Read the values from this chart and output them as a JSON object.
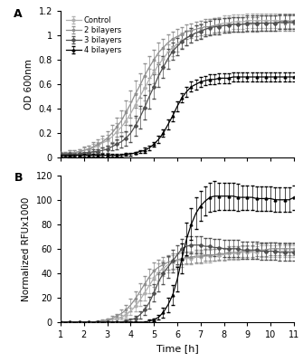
{
  "time": [
    1.0,
    1.2,
    1.4,
    1.6,
    1.8,
    2.0,
    2.2,
    2.4,
    2.6,
    2.8,
    3.0,
    3.2,
    3.4,
    3.6,
    3.8,
    4.0,
    4.2,
    4.4,
    4.6,
    4.8,
    5.0,
    5.2,
    5.4,
    5.6,
    5.8,
    6.0,
    6.2,
    6.4,
    6.6,
    6.8,
    7.0,
    7.2,
    7.4,
    7.6,
    7.8,
    8.0,
    8.2,
    8.4,
    8.6,
    8.8,
    9.0,
    9.2,
    9.4,
    9.6,
    9.8,
    10.0,
    10.2,
    10.4,
    10.6,
    10.8,
    11.0
  ],
  "od_control": [
    0.03,
    0.03,
    0.04,
    0.04,
    0.05,
    0.06,
    0.07,
    0.08,
    0.1,
    0.12,
    0.14,
    0.17,
    0.21,
    0.25,
    0.3,
    0.36,
    0.43,
    0.5,
    0.57,
    0.64,
    0.7,
    0.76,
    0.81,
    0.86,
    0.9,
    0.93,
    0.96,
    0.98,
    1.0,
    1.02,
    1.04,
    1.05,
    1.07,
    1.08,
    1.09,
    1.1,
    1.1,
    1.11,
    1.11,
    1.11,
    1.12,
    1.12,
    1.12,
    1.12,
    1.12,
    1.12,
    1.12,
    1.12,
    1.12,
    1.12,
    1.12
  ],
  "od_control_err": [
    0.02,
    0.02,
    0.02,
    0.02,
    0.02,
    0.02,
    0.03,
    0.03,
    0.03,
    0.04,
    0.05,
    0.06,
    0.07,
    0.08,
    0.09,
    0.1,
    0.1,
    0.1,
    0.1,
    0.09,
    0.09,
    0.08,
    0.08,
    0.07,
    0.07,
    0.06,
    0.06,
    0.06,
    0.06,
    0.06,
    0.06,
    0.06,
    0.06,
    0.06,
    0.06,
    0.06,
    0.06,
    0.06,
    0.06,
    0.06,
    0.06,
    0.06,
    0.06,
    0.06,
    0.06,
    0.06,
    0.06,
    0.06,
    0.06,
    0.06,
    0.06
  ],
  "od_2bil": [
    0.03,
    0.03,
    0.04,
    0.04,
    0.05,
    0.06,
    0.07,
    0.09,
    0.11,
    0.13,
    0.16,
    0.2,
    0.25,
    0.3,
    0.37,
    0.44,
    0.52,
    0.59,
    0.67,
    0.74,
    0.8,
    0.86,
    0.9,
    0.94,
    0.97,
    0.99,
    1.01,
    1.03,
    1.04,
    1.05,
    1.06,
    1.07,
    1.07,
    1.08,
    1.08,
    1.08,
    1.09,
    1.09,
    1.09,
    1.09,
    1.09,
    1.09,
    1.09,
    1.1,
    1.1,
    1.1,
    1.1,
    1.1,
    1.1,
    1.1,
    1.1
  ],
  "od_2bil_err": [
    0.02,
    0.02,
    0.02,
    0.02,
    0.02,
    0.03,
    0.03,
    0.04,
    0.04,
    0.05,
    0.06,
    0.07,
    0.08,
    0.09,
    0.1,
    0.11,
    0.11,
    0.1,
    0.1,
    0.09,
    0.08,
    0.08,
    0.07,
    0.07,
    0.06,
    0.06,
    0.06,
    0.06,
    0.06,
    0.06,
    0.06,
    0.06,
    0.06,
    0.06,
    0.06,
    0.06,
    0.06,
    0.06,
    0.06,
    0.06,
    0.06,
    0.06,
    0.06,
    0.06,
    0.06,
    0.06,
    0.06,
    0.06,
    0.06,
    0.06,
    0.06
  ],
  "od_3bil": [
    0.03,
    0.03,
    0.03,
    0.03,
    0.03,
    0.04,
    0.04,
    0.05,
    0.05,
    0.06,
    0.07,
    0.09,
    0.11,
    0.13,
    0.16,
    0.2,
    0.26,
    0.33,
    0.41,
    0.5,
    0.58,
    0.67,
    0.74,
    0.81,
    0.87,
    0.91,
    0.95,
    0.98,
    1.0,
    1.02,
    1.03,
    1.05,
    1.06,
    1.07,
    1.07,
    1.08,
    1.08,
    1.09,
    1.09,
    1.09,
    1.1,
    1.1,
    1.1,
    1.1,
    1.1,
    1.1,
    1.1,
    1.11,
    1.11,
    1.11,
    1.11
  ],
  "od_3bil_err": [
    0.01,
    0.01,
    0.01,
    0.01,
    0.01,
    0.01,
    0.01,
    0.02,
    0.02,
    0.02,
    0.03,
    0.03,
    0.04,
    0.05,
    0.06,
    0.07,
    0.08,
    0.09,
    0.1,
    0.1,
    0.1,
    0.09,
    0.09,
    0.08,
    0.07,
    0.07,
    0.06,
    0.06,
    0.06,
    0.06,
    0.06,
    0.06,
    0.06,
    0.06,
    0.06,
    0.06,
    0.06,
    0.06,
    0.06,
    0.06,
    0.06,
    0.06,
    0.06,
    0.06,
    0.06,
    0.06,
    0.06,
    0.06,
    0.06,
    0.06,
    0.06
  ],
  "od_4bil": [
    0.02,
    0.02,
    0.02,
    0.02,
    0.02,
    0.02,
    0.02,
    0.02,
    0.02,
    0.02,
    0.02,
    0.02,
    0.02,
    0.02,
    0.03,
    0.03,
    0.04,
    0.05,
    0.06,
    0.08,
    0.11,
    0.15,
    0.2,
    0.27,
    0.34,
    0.42,
    0.49,
    0.54,
    0.58,
    0.6,
    0.62,
    0.63,
    0.64,
    0.64,
    0.65,
    0.65,
    0.65,
    0.66,
    0.66,
    0.66,
    0.66,
    0.66,
    0.66,
    0.66,
    0.66,
    0.66,
    0.66,
    0.66,
    0.66,
    0.66,
    0.66
  ],
  "od_4bil_err": [
    0.01,
    0.01,
    0.01,
    0.01,
    0.01,
    0.01,
    0.01,
    0.01,
    0.01,
    0.01,
    0.01,
    0.01,
    0.01,
    0.01,
    0.01,
    0.01,
    0.01,
    0.01,
    0.02,
    0.02,
    0.02,
    0.03,
    0.03,
    0.04,
    0.04,
    0.04,
    0.04,
    0.04,
    0.04,
    0.04,
    0.04,
    0.04,
    0.04,
    0.04,
    0.04,
    0.04,
    0.04,
    0.04,
    0.04,
    0.04,
    0.04,
    0.04,
    0.04,
    0.04,
    0.04,
    0.04,
    0.04,
    0.04,
    0.04,
    0.04,
    0.04
  ],
  "rfu_control": [
    0,
    0,
    0,
    0,
    0,
    0,
    0,
    0,
    0,
    1,
    1,
    2,
    3,
    4,
    6,
    9,
    13,
    18,
    24,
    30,
    36,
    41,
    44,
    47,
    49,
    50,
    51,
    52,
    52,
    53,
    53,
    54,
    54,
    55,
    55,
    55,
    56,
    56,
    56,
    57,
    57,
    57,
    57,
    58,
    58,
    58,
    58,
    58,
    58,
    58,
    58
  ],
  "rfu_control_err": [
    0,
    0,
    0,
    0,
    0,
    0,
    0,
    0,
    0,
    0,
    1,
    1,
    1,
    2,
    2,
    3,
    4,
    5,
    6,
    6,
    7,
    7,
    6,
    6,
    6,
    6,
    6,
    5,
    5,
    5,
    5,
    5,
    5,
    5,
    5,
    5,
    5,
    5,
    5,
    5,
    5,
    5,
    5,
    5,
    5,
    5,
    5,
    5,
    5,
    5,
    5
  ],
  "rfu_2bil": [
    0,
    0,
    0,
    0,
    0,
    0,
    0,
    0,
    1,
    1,
    2,
    3,
    5,
    7,
    10,
    14,
    19,
    25,
    31,
    37,
    42,
    45,
    47,
    49,
    50,
    51,
    52,
    53,
    53,
    54,
    54,
    55,
    55,
    55,
    56,
    56,
    57,
    57,
    57,
    58,
    58,
    58,
    59,
    59,
    59,
    60,
    60,
    60,
    60,
    60,
    60
  ],
  "rfu_2bil_err": [
    0,
    0,
    0,
    0,
    0,
    0,
    0,
    0,
    0,
    1,
    1,
    2,
    2,
    3,
    4,
    5,
    6,
    7,
    7,
    7,
    7,
    6,
    6,
    6,
    6,
    5,
    5,
    5,
    5,
    5,
    5,
    5,
    5,
    5,
    5,
    5,
    5,
    5,
    5,
    5,
    5,
    5,
    5,
    5,
    5,
    5,
    5,
    5,
    5,
    5,
    5
  ],
  "rfu_3bil": [
    0,
    0,
    0,
    0,
    0,
    0,
    0,
    0,
    0,
    0,
    0,
    0,
    0,
    0,
    1,
    2,
    3,
    6,
    10,
    16,
    24,
    33,
    40,
    45,
    50,
    55,
    60,
    62,
    63,
    63,
    63,
    62,
    62,
    61,
    61,
    60,
    60,
    60,
    60,
    59,
    59,
    59,
    59,
    58,
    58,
    58,
    58,
    57,
    57,
    57,
    57
  ],
  "rfu_3bil_err": [
    0,
    0,
    0,
    0,
    0,
    0,
    0,
    0,
    0,
    0,
    0,
    0,
    0,
    0,
    1,
    1,
    2,
    3,
    4,
    5,
    7,
    8,
    9,
    9,
    9,
    8,
    8,
    8,
    7,
    7,
    7,
    7,
    7,
    7,
    7,
    7,
    7,
    7,
    7,
    7,
    7,
    7,
    7,
    7,
    7,
    7,
    7,
    7,
    7,
    7,
    7
  ],
  "rfu_4bil": [
    0,
    0,
    0,
    0,
    0,
    0,
    0,
    0,
    0,
    0,
    0,
    0,
    0,
    0,
    0,
    0,
    0,
    0,
    0,
    1,
    2,
    4,
    8,
    14,
    22,
    35,
    52,
    68,
    80,
    89,
    95,
    99,
    102,
    103,
    103,
    103,
    103,
    103,
    102,
    102,
    102,
    102,
    101,
    101,
    101,
    101,
    100,
    100,
    100,
    100,
    102
  ],
  "rfu_4bil_err": [
    0,
    0,
    0,
    0,
    0,
    0,
    0,
    0,
    0,
    0,
    0,
    0,
    0,
    0,
    0,
    0,
    0,
    0,
    0,
    1,
    1,
    2,
    4,
    6,
    8,
    10,
    12,
    13,
    13,
    13,
    12,
    12,
    12,
    12,
    11,
    11,
    11,
    11,
    11,
    10,
    10,
    10,
    10,
    10,
    10,
    10,
    10,
    10,
    10,
    10,
    10
  ],
  "colors": {
    "control": "#b0b0b0",
    "2bil": "#909090",
    "3bil": "#505050",
    "4bil": "#000000"
  },
  "markers": {
    "control": "o",
    "2bil": "s",
    "3bil": "D",
    "4bil": "^"
  },
  "legend_labels": [
    "Control",
    "2 bilayers",
    "3 bilayers",
    "4 bilayers"
  ],
  "panel_A_ylabel": "OD 600nm",
  "panel_B_ylabel": "Normalized RFUx1000",
  "xlabel": "Time [h]",
  "panel_A_ylim": [
    0,
    1.2
  ],
  "panel_B_ylim": [
    0,
    120
  ],
  "xlim": [
    1,
    11
  ],
  "xticks": [
    1,
    2,
    3,
    4,
    5,
    6,
    7,
    8,
    9,
    10,
    11
  ],
  "panel_A_yticks": [
    0,
    0.2,
    0.4,
    0.6,
    0.8,
    1.0,
    1.2
  ],
  "panel_B_yticks": [
    0,
    20,
    40,
    60,
    80,
    100,
    120
  ]
}
